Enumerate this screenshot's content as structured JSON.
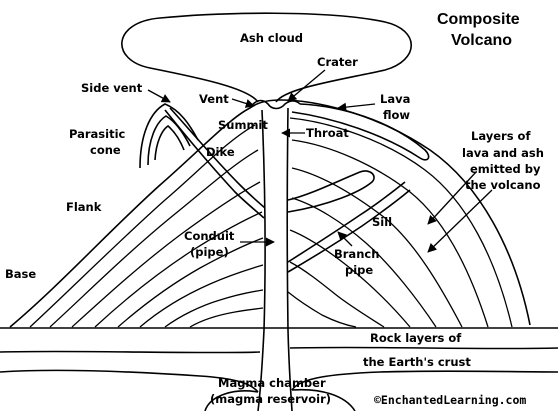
{
  "title": {
    "line1": "Composite",
    "line2": "Volcano"
  },
  "labels": {
    "ash_cloud": "Ash cloud",
    "crater": "Crater",
    "side_vent": "Side vent",
    "vent": "Vent",
    "summit": "Summit",
    "lava_flow_1": "Lava",
    "lava_flow_2": "flow",
    "parasitic_cone_1": "Parasitic",
    "parasitic_cone_2": "cone",
    "throat": "Throat",
    "dike": "Dike",
    "layers_1": "Layers of",
    "layers_2": "lava and ash",
    "layers_3": "emitted by",
    "layers_4": "the volcano",
    "flank": "Flank",
    "sill": "Sill",
    "conduit_1": "Conduit",
    "conduit_2": "(pipe)",
    "branch_pipe_1": "Branch",
    "branch_pipe_2": "pipe",
    "base": "Base",
    "rock_layers_1": "Rock layers of",
    "rock_layers_2": "the Earth's crust",
    "magma_chamber_1": "Magma chamber",
    "magma_chamber_2": "(magma reservoir)"
  },
  "credit": "©EnchantedLearning.com",
  "colors": {
    "ink": "#000000",
    "background": "#ffffff"
  }
}
